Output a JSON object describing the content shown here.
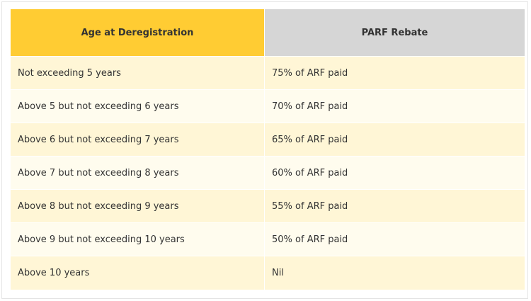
{
  "table": {
    "headers": {
      "age": "Age at Deregistration",
      "rebate": "PARF Rebate"
    },
    "colors": {
      "header_age_bg": "#ffcc33",
      "header_rebate_bg": "#d6d6d6",
      "row_odd_bg": "#fff6d6",
      "row_even_bg": "#fffcee"
    },
    "rows": [
      {
        "age": "Not exceeding 5 years",
        "rebate": "75% of ARF paid"
      },
      {
        "age": "Above 5 but not exceeding 6 years",
        "rebate": "70% of ARF paid"
      },
      {
        "age": "Above 6 but not exceeding 7 years",
        "rebate": "65% of ARF paid"
      },
      {
        "age": "Above 7 but not exceeding 8 years",
        "rebate": "60% of ARF paid"
      },
      {
        "age": "Above 8 but not exceeding 9 years",
        "rebate": "55% of ARF paid"
      },
      {
        "age": "Above 9 but not exceeding 10 years",
        "rebate": "50% of ARF paid"
      },
      {
        "age": "Above 10 years",
        "rebate": "Nil"
      }
    ]
  }
}
